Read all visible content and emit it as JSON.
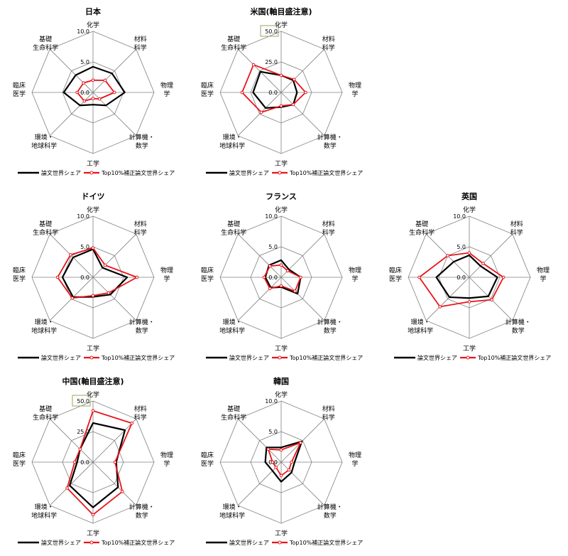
{
  "axes": [
    "化学",
    "材料\n科学",
    "物理\n学",
    "計算機・\n数学",
    "工学",
    "環境・\n地球科学",
    "臨床\n医学",
    "基礎\n生命科学"
  ],
  "legend": {
    "paper_share": "論文世界シェア",
    "top10_share": "Top10%補正論文世界シェア"
  },
  "colors": {
    "paper_share": "#000000",
    "top10_share": "#e8141b",
    "grid": "#808080",
    "highlight_box": "#9aa55a"
  },
  "chart_data": [
    {
      "type": "radar",
      "title": "日本",
      "axes": [
        "化学",
        "材料科学",
        "物理学",
        "計算機・数学",
        "工学",
        "環境・地球科学",
        "臨床医学",
        "基礎生命科学"
      ],
      "rlim": [
        0,
        10
      ],
      "ticks": [
        "0.0",
        "5.0",
        "10.0"
      ],
      "highlight_max": false,
      "series": [
        {
          "name": "論文世界シェア",
          "values": [
            4.2,
            4.4,
            5.2,
            3.0,
            2.0,
            3.0,
            4.8,
            4.0
          ]
        },
        {
          "name": "Top10%補正論文世界シェア",
          "values": [
            2.0,
            2.8,
            3.5,
            1.5,
            1.0,
            2.0,
            2.6,
            2.2
          ]
        }
      ]
    },
    {
      "type": "radar",
      "title": "米国(軸目盛注意)",
      "axes": [
        "化学",
        "材料科学",
        "物理学",
        "計算機・数学",
        "工学",
        "環境・地球科学",
        "臨床医学",
        "基礎生命科学"
      ],
      "rlim": [
        0,
        50
      ],
      "ticks": [
        "0.0",
        "25.0",
        "50.0"
      ],
      "highlight_max": true,
      "series": [
        {
          "name": "論文世界シェア",
          "values": [
            14.0,
            14.0,
            13.0,
            14.0,
            12.0,
            18.0,
            23.0,
            24.0
          ]
        },
        {
          "name": "Top10%補正論文世界シェア",
          "values": [
            14.0,
            15.0,
            20.0,
            14.0,
            11.0,
            23.0,
            32.0,
            32.0
          ]
        }
      ]
    },
    {
      "type": "radar",
      "title": "ドイツ",
      "axes": [
        "化学",
        "材料科学",
        "物理学",
        "計算機・数学",
        "工学",
        "環境・地球科学",
        "臨床医学",
        "基礎生命科学"
      ],
      "rlim": [
        0,
        10
      ],
      "ticks": [
        "0.0",
        "5.0",
        "10.0"
      ],
      "highlight_max": false,
      "series": [
        {
          "name": "論文世界シェア",
          "values": [
            4.6,
            2.2,
            5.6,
            4.0,
            3.2,
            4.6,
            5.0,
            4.6
          ]
        },
        {
          "name": "Top10%補正論文世界シェア",
          "values": [
            4.8,
            2.8,
            7.2,
            3.6,
            3.0,
            4.8,
            5.8,
            5.2
          ]
        }
      ]
    },
    {
      "type": "radar",
      "title": "フランス",
      "axes": [
        "化学",
        "材料科学",
        "物理学",
        "計算機・数学",
        "工学",
        "環境・地球科学",
        "臨床医学",
        "基礎生命科学"
      ],
      "rlim": [
        0,
        10
      ],
      "ticks": [
        "0.0",
        "5.0",
        "10.0"
      ],
      "highlight_max": false,
      "series": [
        {
          "name": "論文世界シェア",
          "values": [
            2.8,
            1.8,
            3.2,
            3.8,
            1.6,
            2.4,
            2.6,
            2.8
          ]
        },
        {
          "name": "Top10%補正論文世界シェア",
          "values": [
            2.0,
            1.5,
            3.2,
            3.2,
            1.4,
            2.6,
            2.8,
            2.6
          ]
        }
      ]
    },
    {
      "type": "radar",
      "title": "英国",
      "axes": [
        "化学",
        "材料科学",
        "物理学",
        "計算機・数学",
        "工学",
        "環境・地球科学",
        "臨床医学",
        "基礎生命科学"
      ],
      "rlim": [
        0,
        10
      ],
      "ticks": [
        "0.0",
        "5.0",
        "10.0"
      ],
      "highlight_max": false,
      "series": [
        {
          "name": "論文世界シェア",
          "values": [
            3.6,
            2.6,
            4.6,
            4.4,
            3.4,
            4.6,
            5.4,
            3.6
          ]
        },
        {
          "name": "Top10%補正論文世界シェア",
          "values": [
            4.0,
            3.2,
            5.6,
            5.2,
            4.0,
            6.8,
            8.2,
            5.0
          ]
        }
      ]
    },
    {
      "type": "radar",
      "title": "中国(軸目盛注意)",
      "axes": [
        "化学",
        "材料科学",
        "物理学",
        "計算機・数学",
        "工学",
        "環境・地球科学",
        "臨床医学",
        "基礎生命科学"
      ],
      "rlim": [
        0,
        50
      ],
      "ticks": [
        "0.0",
        "25.0",
        "50.0"
      ],
      "highlight_max": true,
      "series": [
        {
          "name": "論文世界シェア",
          "values": [
            32.0,
            37.0,
            19.0,
            29.0,
            37.0,
            27.0,
            13.0,
            15.0
          ]
        },
        {
          "name": "Top10%補正論文世界シェア",
          "values": [
            42.0,
            45.0,
            18.0,
            34.0,
            43.0,
            30.0,
            15.0,
            15.0
          ]
        }
      ]
    },
    {
      "type": "radar",
      "title": "韓国",
      "axes": [
        "化学",
        "材料科学",
        "物理学",
        "計算機・数学",
        "工学",
        "環境・地球科学",
        "臨床医学",
        "基礎生命科学"
      ],
      "rlim": [
        0,
        10
      ],
      "ticks": [
        "0.0",
        "5.0",
        "10.0"
      ],
      "highlight_max": false,
      "series": [
        {
          "name": "論文世界シェア",
          "values": [
            2.4,
            4.8,
            2.2,
            2.4,
            3.2,
            2.0,
            2.6,
            3.4
          ]
        },
        {
          "name": "Top10%補正論文世界シェア",
          "values": [
            2.0,
            4.5,
            1.7,
            1.8,
            2.2,
            1.2,
            1.4,
            3.0
          ]
        }
      ]
    }
  ]
}
